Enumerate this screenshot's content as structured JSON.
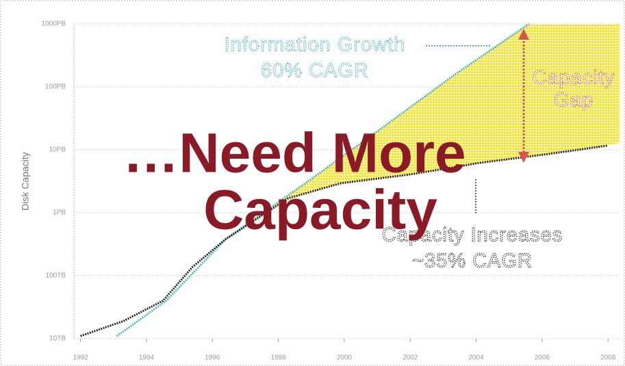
{
  "chart_data": {
    "type": "line",
    "title_lines": [
      "…Need More",
      "Capacity"
    ],
    "ylabel": "Disk Capacity",
    "log_y": true,
    "grid": true,
    "xlim": [
      1991.8,
      2008.35
    ],
    "xticks": [
      1992,
      1994,
      1996,
      1998,
      2000,
      2002,
      2004,
      2006,
      2008
    ],
    "ylim": [
      10,
      1000000
    ],
    "yticks": [
      {
        "value": 10,
        "label": "10TB"
      },
      {
        "value": 100,
        "label": "100TB"
      },
      {
        "value": 1000,
        "label": "1PB"
      },
      {
        "value": 10000,
        "label": "10PB"
      },
      {
        "value": 100000,
        "label": "100PB"
      },
      {
        "value": 1000000,
        "label": "1000PB"
      }
    ],
    "gap_color": "#f2e23a",
    "series": [
      {
        "name": "Information Growth",
        "color": "#4fb3c8",
        "x": [
          1993.1,
          1994.6,
          1996.4,
          1998.9,
          2001.2,
          2003.3,
          2005.6
        ],
        "values": [
          11,
          40,
          380,
          3160,
          23400,
          150000,
          1000000
        ]
      },
      {
        "name": "Capacity Increases",
        "color": "#222222",
        "x": [
          1992,
          1993.3,
          1994.5,
          1995.4,
          1996.4,
          1998.3,
          1999.9,
          2002,
          2004.1,
          2006.2,
          2008
        ],
        "values": [
          11,
          19,
          40,
          138,
          380,
          1700,
          2950,
          4060,
          6200,
          8600,
          11700
        ]
      }
    ],
    "annotations": [
      {
        "text": "Information Growth",
        "color": "#4fb3c8"
      },
      {
        "text": "60% CAGR",
        "color": "#4fb3c8"
      },
      {
        "text": "Capacity",
        "color": "#d9534f"
      },
      {
        "text": "Gap",
        "color": "#d9534f"
      },
      {
        "text": "Capacity Increases",
        "color": "#333333"
      },
      {
        "text": "~35% CAGR",
        "color": "#333333"
      }
    ]
  }
}
